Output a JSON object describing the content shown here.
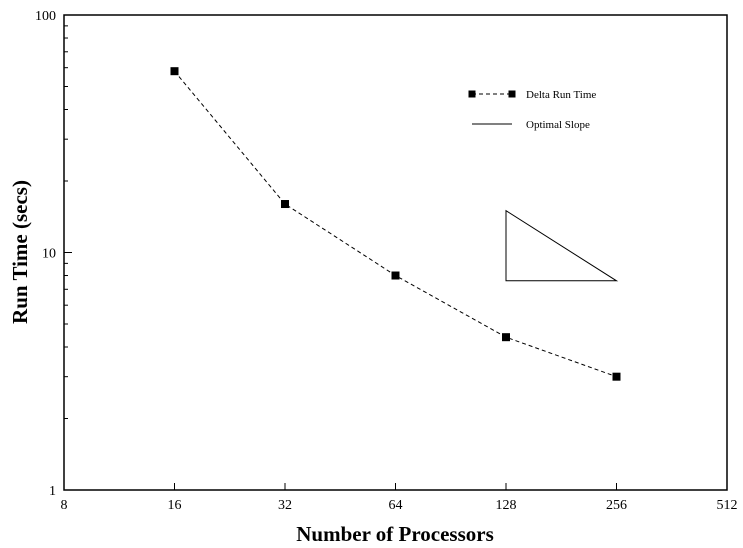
{
  "chart_data": {
    "type": "line",
    "xlabel": "Number of Processors",
    "ylabel": "Run Time (secs)",
    "x_scale": "log2",
    "y_scale": "log10",
    "xlim": [
      8,
      512
    ],
    "ylim": [
      1,
      100
    ],
    "x_ticks": [
      "8",
      "16",
      "32",
      "64",
      "128",
      "256",
      "512"
    ],
    "y_ticks": [
      "1",
      "10",
      "100"
    ],
    "grid": false,
    "legend_position": "top-right",
    "series": [
      {
        "name": "Delta Run Time",
        "style": "dashed-with-square-markers",
        "color": "#000000",
        "x": [
          16,
          32,
          64,
          128,
          256
        ],
        "y": [
          58,
          16,
          8.0,
          4.4,
          3.0
        ]
      },
      {
        "name": "Optimal Slope",
        "style": "solid",
        "color": "#000000",
        "shape": "triangle",
        "vertices": [
          [
            128,
            15
          ],
          [
            128,
            7.6
          ],
          [
            256,
            7.6
          ]
        ]
      }
    ]
  }
}
